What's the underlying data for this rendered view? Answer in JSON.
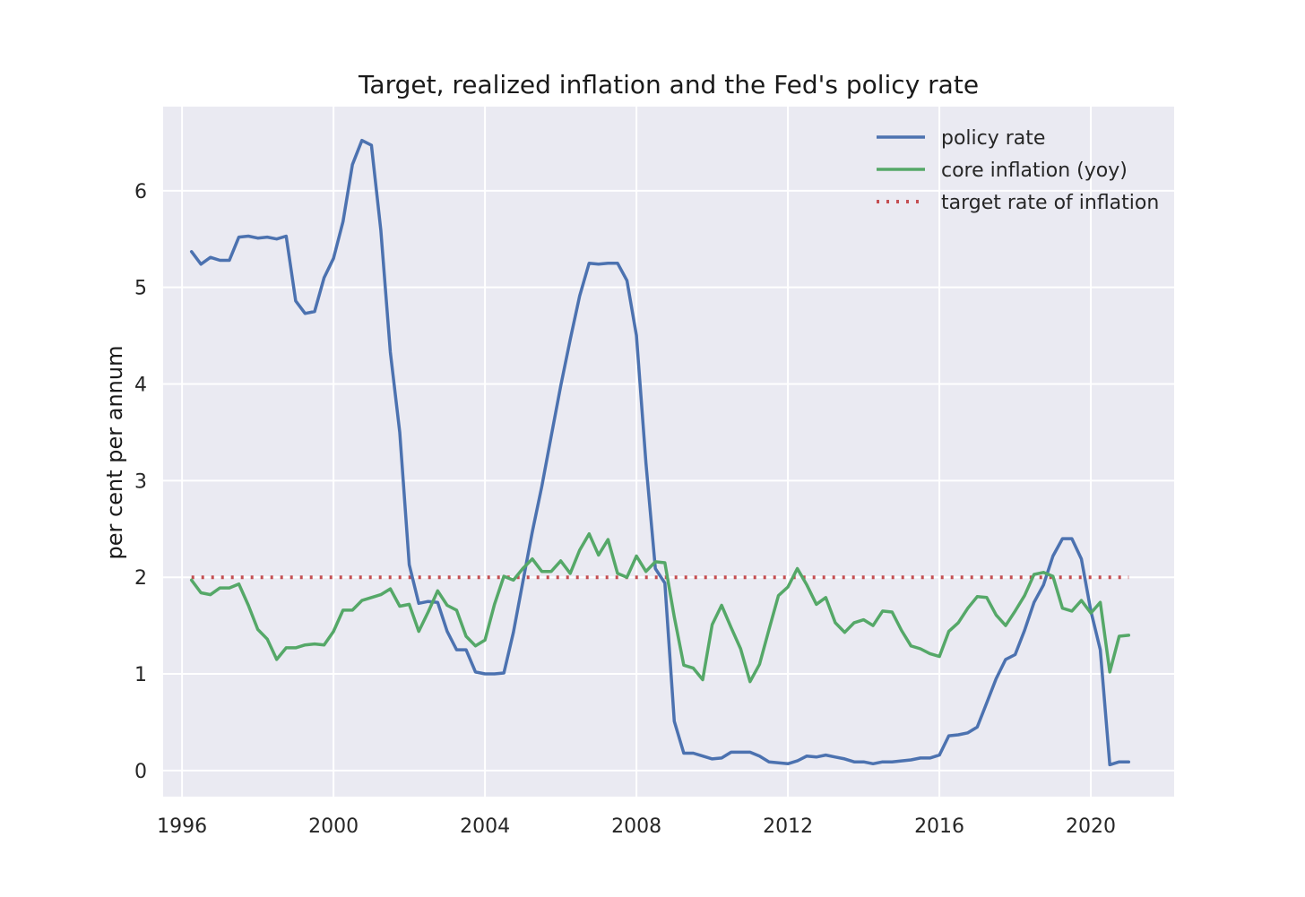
{
  "chart_data": {
    "type": "line",
    "title": "Target, realized inflation and the Fed's policy rate",
    "xlabel": "",
    "ylabel": "per cent per annum",
    "xlim": [
      1995.5,
      2022.2
    ],
    "ylim": [
      -0.27,
      6.87
    ],
    "x_ticks": [
      1996,
      2000,
      2004,
      2008,
      2012,
      2016,
      2020
    ],
    "x_tick_labels": [
      "1996",
      "2000",
      "2004",
      "2008",
      "2012",
      "2016",
      "2020"
    ],
    "y_ticks": [
      0,
      1,
      2,
      3,
      4,
      5,
      6
    ],
    "y_tick_labels": [
      "0",
      "1",
      "2",
      "3",
      "4",
      "5",
      "6"
    ],
    "grid": true,
    "legend_position": "top-right",
    "colors": {
      "plot_background": "#EAEAF2",
      "grid": "#FFFFFF",
      "policy_rate": "#4C72B0",
      "core_inflation": "#55A868",
      "target": "#C44E52"
    },
    "x": [
      1996.25,
      1996.5,
      1996.75,
      1997.0,
      1997.25,
      1997.5,
      1997.75,
      1998.0,
      1998.25,
      1998.5,
      1998.75,
      1999.0,
      1999.25,
      1999.5,
      1999.75,
      2000.0,
      2000.25,
      2000.5,
      2000.75,
      2001.0,
      2001.25,
      2001.5,
      2001.75,
      2002.0,
      2002.25,
      2002.5,
      2002.75,
      2003.0,
      2003.25,
      2003.5,
      2003.75,
      2004.0,
      2004.25,
      2004.5,
      2004.75,
      2005.0,
      2005.25,
      2005.5,
      2005.75,
      2006.0,
      2006.25,
      2006.5,
      2006.75,
      2007.0,
      2007.25,
      2007.5,
      2007.75,
      2008.0,
      2008.25,
      2008.5,
      2008.75,
      2009.0,
      2009.25,
      2009.5,
      2009.75,
      2010.0,
      2010.25,
      2010.5,
      2010.75,
      2011.0,
      2011.25,
      2011.5,
      2011.75,
      2012.0,
      2012.25,
      2012.5,
      2012.75,
      2013.0,
      2013.25,
      2013.5,
      2013.75,
      2014.0,
      2014.25,
      2014.5,
      2014.75,
      2015.0,
      2015.25,
      2015.5,
      2015.75,
      2016.0,
      2016.25,
      2016.5,
      2016.75,
      2017.0,
      2017.25,
      2017.5,
      2017.75,
      2018.0,
      2018.25,
      2018.5,
      2018.75,
      2019.0,
      2019.25,
      2019.5,
      2019.75,
      2020.0,
      2020.25,
      2020.5,
      2020.75,
      2021.0
    ],
    "series": [
      {
        "name": "policy rate",
        "style": "solid",
        "color": "#4C72B0",
        "values": [
          5.37,
          5.24,
          5.31,
          5.28,
          5.28,
          5.52,
          5.53,
          5.51,
          5.52,
          5.5,
          5.53,
          4.86,
          4.73,
          4.75,
          5.1,
          5.3,
          5.68,
          6.27,
          6.52,
          6.47,
          5.59,
          4.33,
          3.5,
          2.13,
          1.73,
          1.75,
          1.74,
          1.44,
          1.25,
          1.25,
          1.02,
          1.0,
          1.0,
          1.01,
          1.43,
          1.95,
          2.47,
          2.94,
          3.46,
          3.98,
          4.46,
          4.91,
          5.25,
          5.24,
          5.25,
          5.25,
          5.07,
          4.5,
          3.18,
          2.09,
          1.94,
          0.51,
          0.18,
          0.18,
          0.15,
          0.12,
          0.13,
          0.19,
          0.19,
          0.19,
          0.15,
          0.09,
          0.08,
          0.07,
          0.1,
          0.15,
          0.14,
          0.16,
          0.14,
          0.12,
          0.09,
          0.09,
          0.07,
          0.09,
          0.09,
          0.1,
          0.11,
          0.13,
          0.13,
          0.16,
          0.36,
          0.37,
          0.39,
          0.45,
          0.7,
          0.95,
          1.15,
          1.2,
          1.45,
          1.74,
          1.92,
          2.22,
          2.4,
          2.4,
          2.19,
          1.65,
          1.25,
          0.06,
          0.09,
          0.09
        ]
      },
      {
        "name": "core inflation (yoy)",
        "style": "solid",
        "color": "#55A868",
        "values": [
          1.97,
          1.84,
          1.82,
          1.89,
          1.89,
          1.93,
          1.71,
          1.46,
          1.36,
          1.15,
          1.27,
          1.27,
          1.3,
          1.31,
          1.3,
          1.44,
          1.66,
          1.66,
          1.76,
          1.79,
          1.82,
          1.88,
          1.7,
          1.72,
          1.44,
          1.64,
          1.86,
          1.71,
          1.66,
          1.39,
          1.29,
          1.35,
          1.72,
          2.01,
          1.97,
          2.09,
          2.19,
          2.06,
          2.06,
          2.17,
          2.04,
          2.28,
          2.45,
          2.23,
          2.39,
          2.04,
          2.0,
          2.22,
          2.06,
          2.16,
          2.15,
          1.59,
          1.09,
          1.06,
          0.94,
          1.51,
          1.71,
          1.48,
          1.26,
          0.92,
          1.1,
          1.46,
          1.81,
          1.9,
          2.09,
          1.92,
          1.72,
          1.79,
          1.53,
          1.43,
          1.53,
          1.56,
          1.5,
          1.65,
          1.64,
          1.45,
          1.29,
          1.26,
          1.21,
          1.18,
          1.44,
          1.53,
          1.68,
          1.8,
          1.79,
          1.61,
          1.5,
          1.65,
          1.81,
          2.03,
          2.05,
          2.01,
          1.68,
          1.65,
          1.76,
          1.63,
          1.74,
          1.02,
          1.39,
          1.4
        ]
      },
      {
        "name": "target rate of inflation",
        "style": "dotted",
        "color": "#C44E52",
        "x": [
          1996.25,
          2021.0
        ],
        "values": [
          2.0,
          2.0
        ]
      }
    ]
  }
}
